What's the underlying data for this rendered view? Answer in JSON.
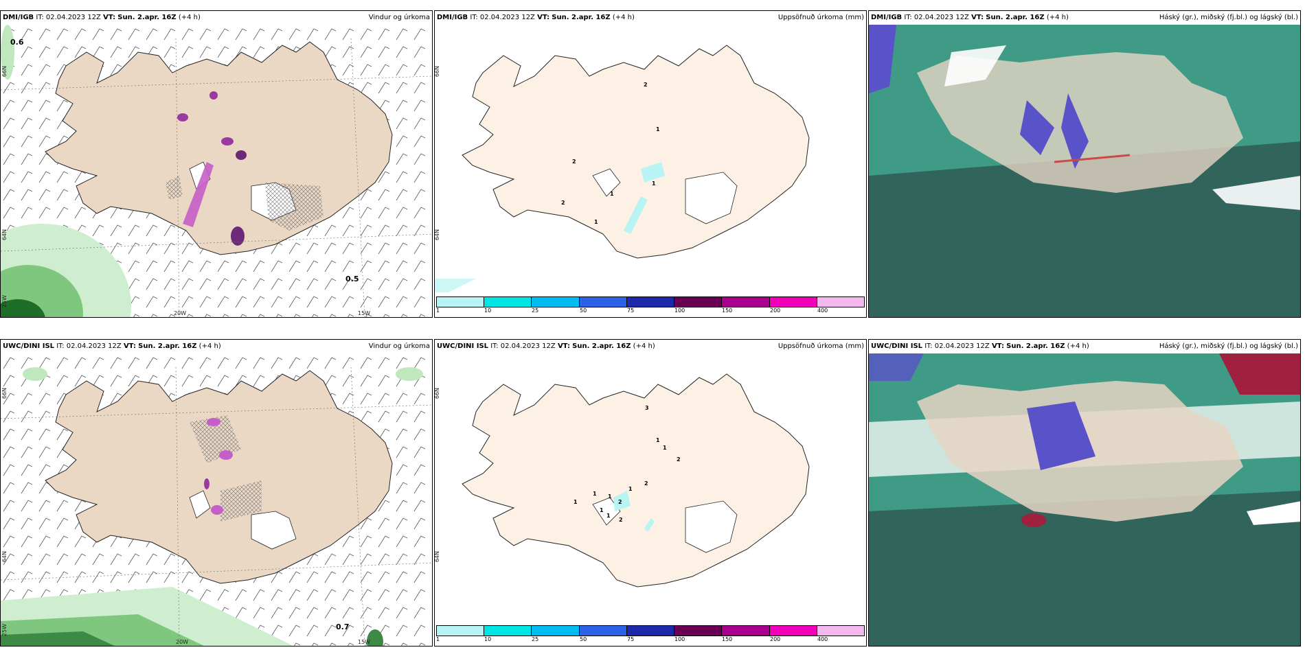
{
  "rows": [
    {
      "model": "DMI/IGB",
      "it_label": "IT:",
      "it_value": "02.04.2023 12Z",
      "vt_label": "VT:",
      "vt_value": "Sun. 2.apr. 16Z",
      "lead": "(+4 h)",
      "panels": {
        "wind": {
          "title": "Vindur og úrkoma",
          "values": [
            "0.6",
            "0.5"
          ]
        },
        "precip": {
          "title": "Uppsöfnuð úrkoma (mm)",
          "values": [
            "2",
            "1",
            "2",
            "1",
            "1",
            "2",
            "1"
          ]
        },
        "cloud": {
          "title": "Háský (gr.), miðský (fj.bl.) og lágský (bl.)"
        }
      }
    },
    {
      "model": "UWC/DINI ISL",
      "it_label": "IT:",
      "it_value": "02.04.2023 12Z",
      "vt_label": "VT:",
      "vt_value": "Sun. 2.apr. 16Z",
      "lead": "(+4 h)",
      "panels": {
        "wind": {
          "title": "Vindur og úrkoma",
          "values": [
            "0.7"
          ]
        },
        "precip": {
          "title": "Uppsöfnuð úrkoma (mm)",
          "values": [
            "3",
            "1",
            "1",
            "2",
            "2",
            "1",
            "1",
            "1",
            "1",
            "1",
            "2",
            "2",
            "1"
          ]
        },
        "cloud": {
          "title": "Háský (gr.), miðský (fj.bl.) og lágský (bl.)"
        }
      }
    }
  ],
  "axes": {
    "lat_66": "66N",
    "lat_64": "64N",
    "lon_25": "25W",
    "lon_20": "20W",
    "lon_15": "15W"
  },
  "colorbar": {
    "ticks": [
      "1",
      "10",
      "25",
      "50",
      "75",
      "100",
      "150",
      "200",
      "400"
    ],
    "colors": [
      "#b8f4f4",
      "#00e6e6",
      "#00bcf0",
      "#2a62e8",
      "#1a2aa8",
      "#6a0054",
      "#a8008c",
      "#f000b8",
      "#f4b8f0"
    ]
  },
  "colors": {
    "land_wind": "#ead7c4",
    "land_precip": "#fdf0e4",
    "cloud_green": "#3f9a86",
    "cloud_dark": "#2f5a52",
    "high_cloud": "#5a52c8",
    "precip_purple": "#b03ab8"
  }
}
